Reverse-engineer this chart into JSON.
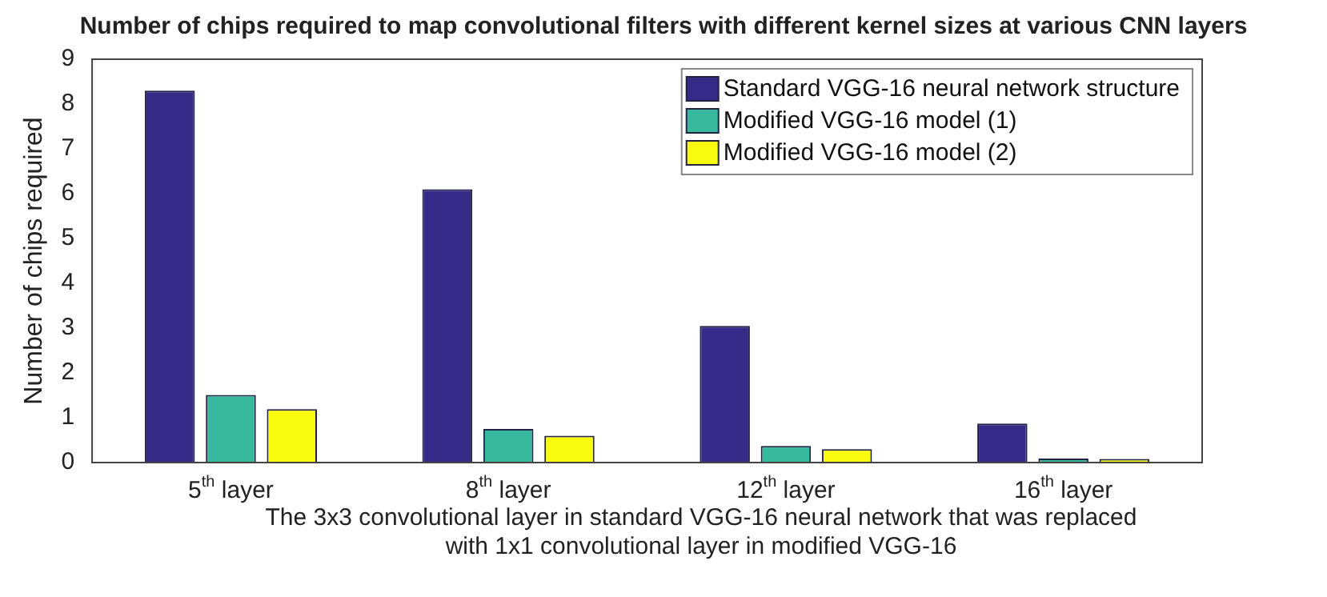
{
  "chart_data": {
    "type": "bar",
    "title": "Number of chips required to map convolutional filters with different kernel sizes at various CNN layers",
    "xlabel": "The 3x3 convolutional layer in standard VGG-16 neural network that was replaced with 1x1 convolutional layer in modified VGG-16",
    "ylabel": "Number of chips required",
    "categories": [
      "5$^{th}$ layer",
      "8$^{th}$ layer",
      "12$^{th}$ layer",
      "16$^{th}$ layer"
    ],
    "series": [
      {
        "name": "Standard VGG-16 neural network structure",
        "color": "#352a87",
        "values": [
          8.3,
          6.1,
          3.05,
          0.87
        ]
      },
      {
        "name": "Modified VGG-16 model (1)",
        "color": "#38b99e",
        "values": [
          1.51,
          0.75,
          0.37,
          0.09
        ]
      },
      {
        "name": "Modified VGG-16 model (2)",
        "color": "#f9fb0e",
        "values": [
          1.19,
          0.6,
          0.3,
          0.08
        ]
      }
    ],
    "ylim": [
      0,
      9
    ],
    "yticks": [
      0,
      1,
      2,
      3,
      4,
      5,
      6,
      7,
      8,
      9
    ],
    "grid": false,
    "legend": "top right"
  }
}
